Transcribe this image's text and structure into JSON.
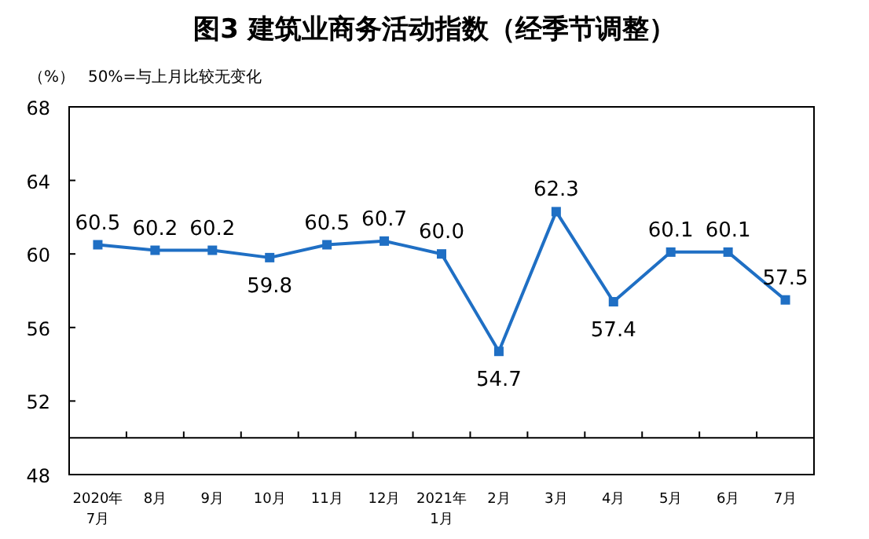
{
  "chart_data": {
    "type": "line",
    "title": "图3  建筑业商务活动指数（经季节调整）",
    "ylabel": "（%）",
    "annotations": [
      "50%=与上月比较无变化"
    ],
    "categories": [
      "2020年\n7月",
      "8月",
      "9月",
      "10月",
      "11月",
      "12月",
      "2021年\n1月",
      "2月",
      "3月",
      "4月",
      "5月",
      "6月",
      "7月"
    ],
    "series": [
      {
        "color": "#1f6fc4",
        "values": [
          60.5,
          60.2,
          60.2,
          59.8,
          60.5,
          60.7,
          60.0,
          54.7,
          62.3,
          57.4,
          60.1,
          60.1,
          57.5
        ]
      }
    ],
    "ylim": [
      48,
      68
    ],
    "yticks": [
      48,
      52,
      56,
      60,
      64,
      68
    ],
    "value_labels": [
      "60.5",
      "60.2",
      "60.2",
      "59.8",
      "60.5",
      "60.7",
      "60.0",
      "54.7",
      "62.3",
      "57.4",
      "60.1",
      "60.1",
      "57.5"
    ],
    "grid": false,
    "marker": "square",
    "ref_lines": [
      {
        "axis": "y",
        "value": 50,
        "color": "#000000"
      }
    ]
  }
}
